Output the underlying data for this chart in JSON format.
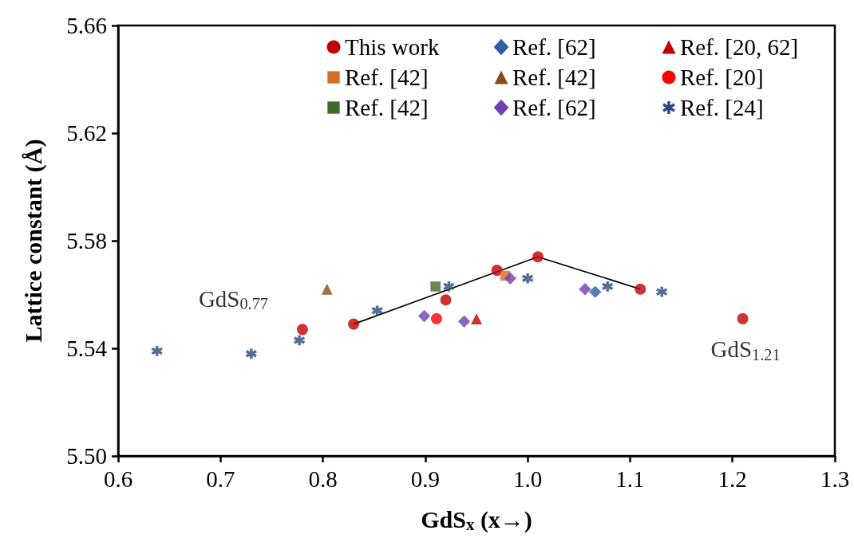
{
  "chart_data": {
    "type": "scatter",
    "xlabel": "GdS$_{x}$ (x→)",
    "ylabel": "Lattice constant (Å)",
    "xlim": [
      0.6,
      1.3
    ],
    "xticks": [
      {
        "value": 0.6,
        "label": "0.6"
      },
      {
        "value": 0.7,
        "label": "0.7"
      },
      {
        "value": 0.8,
        "label": "0.8"
      },
      {
        "value": 0.9,
        "label": "0.9"
      },
      {
        "value": 1.0,
        "label": "1.0"
      },
      {
        "value": 1.1,
        "label": "1.1"
      },
      {
        "value": 1.2,
        "label": "1.2"
      },
      {
        "value": 1.3,
        "label": "1.3"
      }
    ],
    "ylim": [
      5.5,
      5.66
    ],
    "yticks": [
      {
        "value": 5.5,
        "label": "5.50"
      },
      {
        "value": 5.54,
        "label": "5.54"
      },
      {
        "value": 5.58,
        "label": "5.58"
      },
      {
        "value": 5.62,
        "label": "5.62"
      },
      {
        "value": 5.66,
        "label": "5.66"
      }
    ],
    "grid": false,
    "legend": "top right",
    "series": [
      {
        "name": "This work",
        "color": "#c00000",
        "marker": "circle",
        "x": [
          0.78,
          0.83,
          0.92,
          0.97,
          1.01,
          1.11,
          1.21
        ],
        "values": [
          5.547,
          5.549,
          5.558,
          5.569,
          5.574,
          5.562,
          5.551
        ]
      },
      {
        "name": "Ref. [62]",
        "color": "#2e5ea8",
        "marker": "diamond",
        "x": [
          1.066
        ],
        "values": [
          5.561
        ]
      },
      {
        "name": "Ref. [20, 62]",
        "color": "#c00000",
        "marker": "triangle",
        "x": [
          0.95
        ],
        "values": [
          5.551
        ]
      },
      {
        "name": "Ref. [42]",
        "color": "#d07020",
        "marker": "square",
        "x": [
          0.978
        ],
        "values": [
          5.567
        ]
      },
      {
        "name": "Ref. [42]",
        "color": "#8b4a17",
        "marker": "triangle",
        "x": [
          0.804
        ],
        "values": [
          5.562
        ]
      },
      {
        "name": "Ref. [20]",
        "color": "#ff0000",
        "marker": "circle",
        "x": [
          0.911
        ],
        "values": [
          5.551
        ]
      },
      {
        "name": "Ref. [42]",
        "color": "#3d6b2a",
        "marker": "square",
        "x": [
          0.91
        ],
        "values": [
          5.563
        ]
      },
      {
        "name": "Ref. [62]",
        "color": "#7040b0",
        "marker": "diamond",
        "x": [
          0.899,
          0.938,
          0.983,
          1.056
        ],
        "values": [
          5.552,
          5.55,
          5.566,
          5.562
        ]
      },
      {
        "name": "Ref. [24]",
        "color": "#284a80",
        "marker": "cross",
        "x": [
          0.638,
          0.73,
          0.777,
          0.853,
          0.923,
          1.0,
          1.078,
          1.131
        ],
        "values": [
          5.539,
          5.538,
          5.543,
          5.554,
          5.563,
          5.566,
          5.563,
          5.561
        ]
      },
      {
        "type": "line",
        "color": "#000000",
        "marker": "none",
        "line_style": "solid",
        "x": [
          0.83,
          1.01,
          1.11
        ],
        "values": [
          5.549,
          5.574,
          5.562
        ]
      }
    ],
    "annotations": [
      {
        "text": "GdS$_{0.77}$",
        "x": 0.78,
        "y": 5.547
      },
      {
        "text": "GdS$_{1.21}$",
        "x": 1.21,
        "y": 5.551
      }
    ]
  }
}
